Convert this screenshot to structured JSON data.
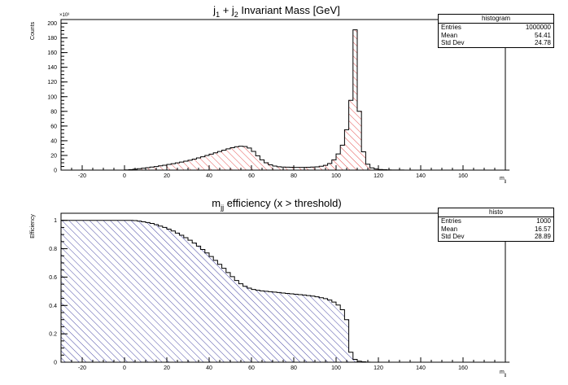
{
  "chart_data": [
    {
      "type": "bar",
      "title": "j_1 + j_2 Invariant Mass [GeV]",
      "title_parts": {
        "base1": "j",
        "sub1": "1",
        "mid": " + j",
        "sub2": "2",
        "tail": " Invariant Mass [GeV]"
      },
      "xlabel": "m_jj",
      "xlabel_parts": {
        "base": "m",
        "sub": "jj"
      },
      "ylabel": "Counts",
      "y_multiplier": "×10³",
      "xlim": [
        -30,
        180
      ],
      "ylim": [
        0,
        205
      ],
      "xticks": [
        -20,
        0,
        20,
        40,
        60,
        80,
        100,
        120,
        140,
        160
      ],
      "yticks": [
        0,
        20,
        40,
        60,
        80,
        100,
        120,
        140,
        160,
        180,
        200
      ],
      "bin_start": -30,
      "bin_width": 2,
      "values": [
        0,
        0,
        0,
        0,
        0,
        0,
        0,
        0,
        0,
        0,
        0,
        0,
        0,
        0,
        0,
        0.3,
        0.7,
        1.2,
        1.9,
        2.6,
        3.3,
        4.1,
        4.9,
        5.8,
        6.7,
        7.7,
        8.7,
        9.8,
        11,
        12.2,
        13.5,
        15,
        16.6,
        18.2,
        19.9,
        21.7,
        23.5,
        25.3,
        27.1,
        28.9,
        30.5,
        31.8,
        32.6,
        32.2,
        30,
        25.5,
        19.5,
        14,
        10,
        7.2,
        5.5,
        4.6,
        4.2,
        4,
        3.9,
        3.8,
        3.8,
        3.8,
        3.9,
        4.1,
        4.5,
        5.2,
        6.5,
        9,
        14,
        22,
        34,
        55,
        95,
        191,
        80,
        25,
        8,
        3,
        1.5,
        0.8,
        0.5,
        0.3,
        0.2,
        0.1,
        0.1,
        0,
        0,
        0,
        0,
        0,
        0,
        0,
        0,
        0,
        0,
        0,
        0,
        0,
        0,
        0,
        0,
        0,
        0,
        0,
        0,
        0,
        0,
        0,
        0,
        0
      ],
      "grid": false,
      "legend_placement": "top-right",
      "fill": "red-hatched",
      "stats": {
        "title": "histogram",
        "rows": [
          [
            "Entries",
            "1000000"
          ],
          [
            "Mean",
            "54.41"
          ],
          [
            "Std Dev",
            "24.78"
          ]
        ]
      }
    },
    {
      "type": "bar",
      "title": "m_jj efficiency (x > threshold)",
      "title_parts": {
        "base": "m",
        "sub": "jj",
        "tail": " efficiency (x > threshold)"
      },
      "xlabel": "m_jj",
      "xlabel_parts": {
        "base": "m",
        "sub": "jj"
      },
      "ylabel": "Efficiency",
      "xlim": [
        -30,
        180
      ],
      "ylim": [
        0,
        1.05
      ],
      "xticks": [
        -20,
        0,
        20,
        40,
        60,
        80,
        100,
        120,
        140,
        160
      ],
      "yticks": [
        0,
        0.2,
        0.4,
        0.6,
        0.8,
        1
      ],
      "ytick_labels": [
        "0",
        "0.2",
        "0.4",
        "0.6",
        "0.8",
        "1"
      ],
      "bin_start": -30,
      "bin_width": 2,
      "values": [
        1,
        1,
        1,
        1,
        1,
        1,
        1,
        1,
        1,
        1,
        1,
        1,
        1,
        1,
        1,
        1,
        1,
        0.998,
        0.995,
        0.99,
        0.985,
        0.978,
        0.97,
        0.96,
        0.95,
        0.938,
        0.925,
        0.91,
        0.895,
        0.878,
        0.86,
        0.84,
        0.818,
        0.795,
        0.77,
        0.745,
        0.718,
        0.69,
        0.662,
        0.632,
        0.603,
        0.576,
        0.553,
        0.535,
        0.522,
        0.513,
        0.507,
        0.503,
        0.5,
        0.497,
        0.494,
        0.491,
        0.488,
        0.485,
        0.482,
        0.479,
        0.476,
        0.473,
        0.47,
        0.466,
        0.461,
        0.455,
        0.448,
        0.438,
        0.424,
        0.403,
        0.37,
        0.3,
        0.07,
        0.02,
        0.007,
        0.003,
        0.001,
        0,
        0,
        0,
        0,
        0,
        0,
        0,
        0,
        0,
        0,
        0,
        0,
        0,
        0,
        0,
        0,
        0,
        0,
        0,
        0,
        0,
        0,
        0,
        0,
        0,
        0,
        0,
        0,
        0,
        0,
        0,
        0,
        0
      ],
      "grid": false,
      "legend_placement": "top-right",
      "fill": "blue-hatched",
      "stats": {
        "title": "histo",
        "rows": [
          [
            "Entries",
            "1000"
          ],
          [
            "Mean",
            "16.57"
          ],
          [
            "Std Dev",
            "28.89"
          ]
        ]
      }
    }
  ]
}
